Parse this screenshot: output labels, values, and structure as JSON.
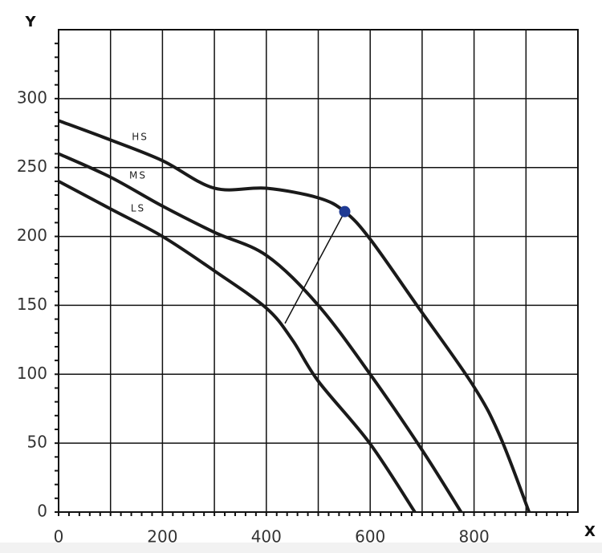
{
  "chart_data": {
    "type": "line",
    "x_label": "X",
    "y_label": "Y",
    "xlim": [
      0,
      1000
    ],
    "ylim": [
      0,
      350
    ],
    "xticks": [
      0,
      200,
      400,
      600,
      800
    ],
    "x_minor_ticks": [
      100,
      300,
      500,
      700,
      900
    ],
    "yticks": [
      0,
      50,
      100,
      150,
      200,
      250,
      300
    ],
    "grid": true,
    "series": [
      {
        "name": "HS",
        "color": "#1a1a1a",
        "label_x": 157,
        "label_y": 272,
        "x": [
          0,
          100,
          200,
          300,
          400,
          500,
          551,
          600,
          690,
          798,
          850,
          906
        ],
        "values": [
          284,
          270,
          255,
          235,
          235,
          228,
          218,
          198,
          150,
          92,
          55,
          0
        ]
      },
      {
        "name": "MS",
        "color": "#1a1a1a",
        "label_x": 153,
        "label_y": 244,
        "x": [
          0,
          100,
          200,
          300,
          401,
          500,
          600,
          700,
          775
        ],
        "values": [
          260,
          243,
          222,
          203,
          186,
          150,
          100,
          45,
          0
        ]
      },
      {
        "name": "LS",
        "color": "#1a1a1a",
        "label_x": 153,
        "label_y": 220,
        "x": [
          0,
          100,
          200,
          300,
          400,
          450,
          500,
          599,
          686
        ],
        "values": [
          240,
          220,
          200,
          175,
          148,
          125,
          95,
          50,
          0
        ]
      }
    ],
    "operating_point": {
      "x": 551,
      "y": 218,
      "color": "#1f3a93"
    }
  }
}
